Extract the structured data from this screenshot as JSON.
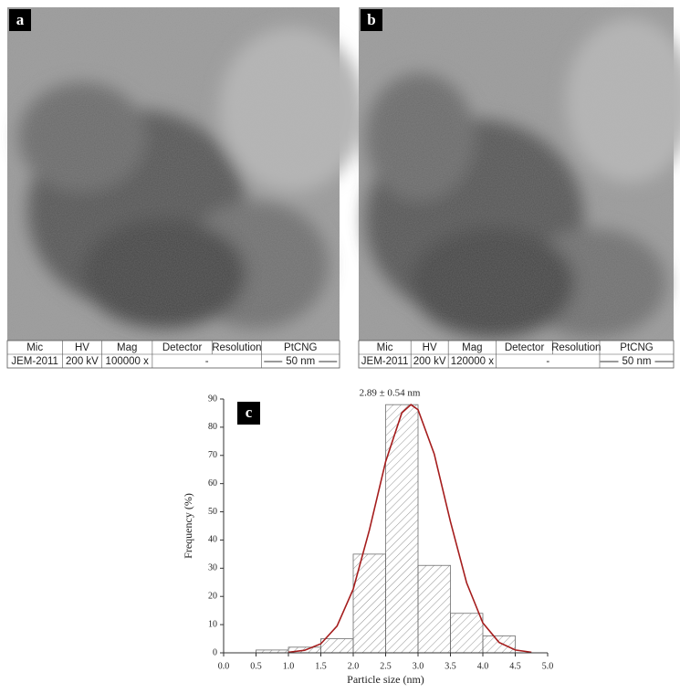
{
  "panels": [
    {
      "label": "a",
      "table": {
        "header": [
          "Mic",
          "HV",
          "Mag",
          "Detector",
          "Resolution",
          "PtCNG"
        ],
        "row": [
          "JEM-2011",
          "200 kV",
          "100000 x",
          "-",
          "50 nm"
        ]
      }
    },
    {
      "label": "b",
      "table": {
        "header": [
          "Mic",
          "HV",
          "Mag",
          "Detector",
          "Resolution",
          "PtCNG"
        ],
        "row": [
          "JEM-2011",
          "200 kV",
          "120000 x",
          "-",
          "50 nm"
        ]
      }
    }
  ],
  "chart_data": {
    "type": "histogram",
    "label": "c",
    "annotation": "2.89 ± 0.54 nm",
    "xlabel": "Particle size  (nm)",
    "ylabel": "Frequency (%)",
    "bins": [
      0.5,
      1.0,
      1.5,
      2.0,
      2.5,
      3.0,
      3.5,
      4.0,
      4.5
    ],
    "values": [
      1,
      2,
      5,
      35,
      88,
      31,
      14,
      6
    ],
    "color": "#6e6e6e",
    "fit": {
      "color": "#a51d1d",
      "x": [
        1.0,
        1.25,
        1.5,
        1.75,
        2.0,
        2.25,
        2.5,
        2.75,
        2.89,
        3.0,
        3.25,
        3.5,
        3.75,
        4.0,
        4.25,
        4.5,
        4.75
      ],
      "values": [
        0.2,
        0.9,
        3.2,
        9.5,
        22.6,
        43.6,
        67.8,
        85.1,
        88,
        86.2,
        70.5,
        46.5,
        24.8,
        10.6,
        3.7,
        1.0,
        0.2
      ]
    },
    "xlim": [
      0,
      5
    ],
    "xticks": [
      {
        "value": 0,
        "label": "0.0"
      },
      {
        "value": 0.5,
        "label": "0.5"
      },
      {
        "value": 1,
        "label": "1.0"
      },
      {
        "value": 1.5,
        "label": "1.5"
      },
      {
        "value": 2,
        "label": "2.0"
      },
      {
        "value": 2.5,
        "label": "2.5"
      },
      {
        "value": 3,
        "label": "3.0"
      },
      {
        "value": 3.5,
        "label": "3.5"
      },
      {
        "value": 4,
        "label": "4.0"
      },
      {
        "value": 4.5,
        "label": "4.5"
      },
      {
        "value": 5,
        "label": "5.0"
      }
    ],
    "ylim": [
      0,
      90
    ],
    "yticks": [
      0,
      10,
      20,
      30,
      40,
      50,
      60,
      70,
      80,
      90
    ]
  }
}
